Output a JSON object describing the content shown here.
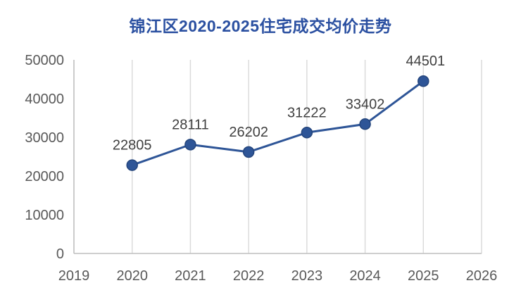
{
  "chart": {
    "title": "锦江区2020-2025住宅成交均价走势"
  },
  "chart_data": {
    "type": "line",
    "title": "锦江区2020-2025住宅成交均价走势",
    "x": [
      2020,
      2021,
      2022,
      2023,
      2024,
      2025
    ],
    "values": [
      22805,
      28111,
      26202,
      31222,
      33402,
      44501
    ],
    "data_labels": [
      "22805",
      "28111",
      "26202",
      "31222",
      "33402",
      "44501"
    ],
    "xlabel": "",
    "ylabel": "",
    "xlim": [
      2019,
      2026
    ],
    "ylim": [
      0,
      50000
    ],
    "x_ticks": [
      2019,
      2020,
      2021,
      2022,
      2023,
      2024,
      2025,
      2026
    ],
    "y_ticks": [
      0,
      10000,
      20000,
      30000,
      40000,
      50000
    ],
    "grid": "vertical-only",
    "legend": "none",
    "colors": {
      "line": "#2e5597",
      "marker_fill": "#2e5597",
      "marker_stroke": "#24457c",
      "title": "#2b50a1",
      "data_label": "#404040",
      "tick_label": "#595959",
      "grid_line": "#d9d9d9",
      "axis_line": "#bfbfbf",
      "background": "#ffffff"
    }
  }
}
